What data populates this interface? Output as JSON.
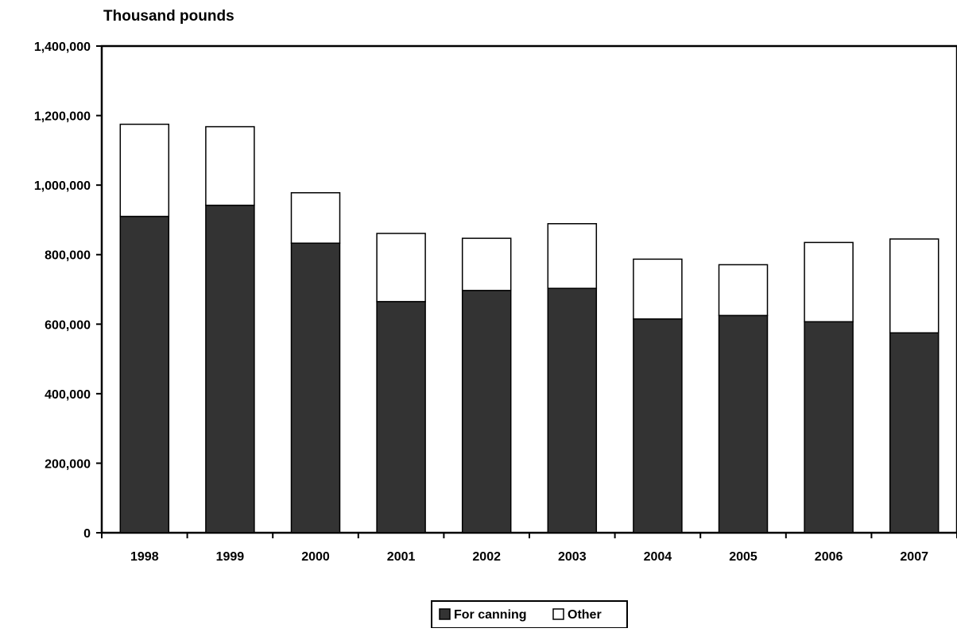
{
  "chart_data": {
    "type": "bar",
    "stacked": true,
    "unit_label": "Thousand pounds",
    "categories": [
      "1998",
      "1999",
      "2000",
      "2001",
      "2002",
      "2003",
      "2004",
      "2005",
      "2006",
      "2007"
    ],
    "series": [
      {
        "name": "For canning",
        "color": "#333333",
        "values": [
          910000,
          942000,
          833000,
          665000,
          697000,
          703000,
          615000,
          625000,
          607000,
          575000
        ]
      },
      {
        "name": "Other",
        "color": "#ffffff",
        "values": [
          265000,
          226000,
          145000,
          196000,
          150000,
          186000,
          172000,
          146000,
          228000,
          270000
        ]
      }
    ],
    "ylim": [
      0,
      1400000
    ],
    "yticks": [
      0,
      200000,
      400000,
      600000,
      800000,
      1000000,
      1200000,
      1400000
    ],
    "ytick_labels": [
      "0",
      "200,000",
      "400,000",
      "600,000",
      "800,000",
      "1,000,000",
      "1,200,000",
      "1,400,000"
    ],
    "grid": false,
    "legend_position": "bottom-center"
  }
}
